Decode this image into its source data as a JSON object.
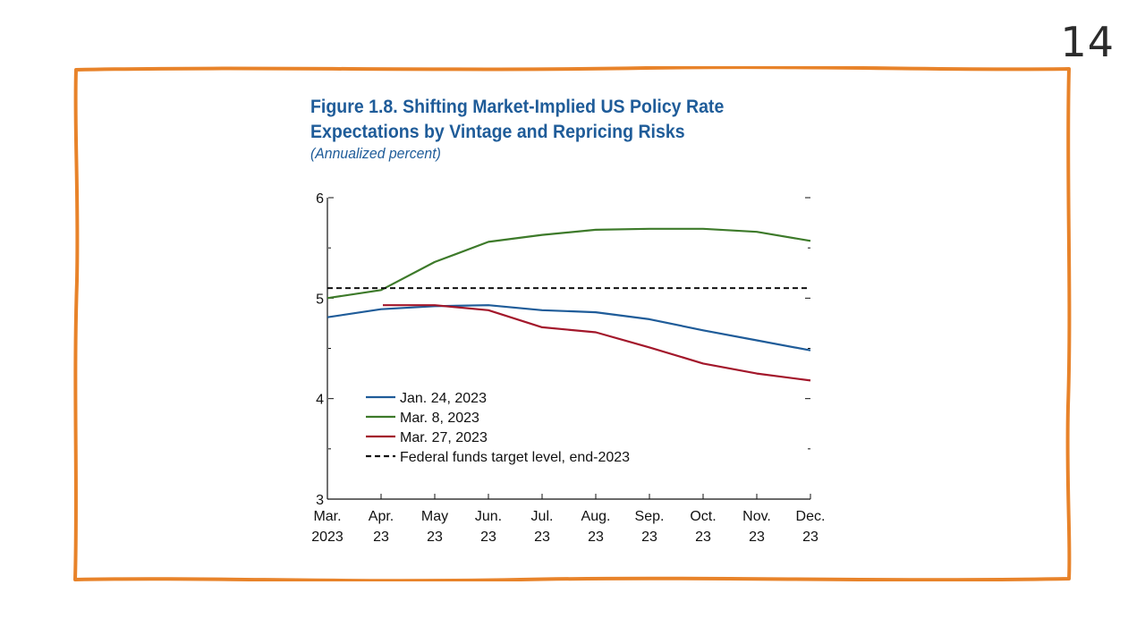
{
  "page": {
    "number": "14",
    "frame_color": "#e8832a"
  },
  "chart_data": {
    "type": "line",
    "title_line1": "Figure 1.8.  Shifting Market-Implied US Policy Rate",
    "title_line2": "Expectations by Vintage and Repricing Risks",
    "subtitle": "(Annualized percent)",
    "title_color": "#1f5c99",
    "categories": [
      [
        "Mar.",
        "2023"
      ],
      [
        "Apr.",
        "23"
      ],
      [
        "May",
        "23"
      ],
      [
        "Jun.",
        "23"
      ],
      [
        "Jul.",
        "23"
      ],
      [
        "Aug.",
        "23"
      ],
      [
        "Sep.",
        "23"
      ],
      [
        "Oct.",
        "23"
      ],
      [
        "Nov.",
        "23"
      ],
      [
        "Dec.",
        "23"
      ]
    ],
    "ylim": [
      3,
      6
    ],
    "y_labeled_ticks": [
      "3",
      "4",
      "5",
      "6"
    ],
    "series": [
      {
        "name": "Jan. 24, 2023",
        "color": "#1f5c99",
        "values": [
          4.81,
          4.89,
          4.92,
          4.93,
          4.88,
          4.86,
          4.79,
          4.68,
          4.58,
          4.48
        ]
      },
      {
        "name": "Mar. 8, 2023",
        "color": "#3d7a2a",
        "values": [
          5.0,
          5.08,
          5.36,
          5.56,
          5.63,
          5.68,
          5.69,
          5.69,
          5.66,
          5.57
        ]
      },
      {
        "name": "Mar. 27, 2023",
        "color": "#a3172b",
        "values": [
          null,
          4.93,
          4.93,
          4.88,
          4.71,
          4.66,
          4.51,
          4.35,
          4.25,
          4.18
        ]
      },
      {
        "name": "Federal funds target level, end-2023",
        "color": "#111111",
        "dashed": true,
        "values": [
          5.1,
          5.1,
          5.1,
          5.1,
          5.1,
          5.1,
          5.1,
          5.1,
          5.1,
          5.1
        ]
      }
    ]
  }
}
